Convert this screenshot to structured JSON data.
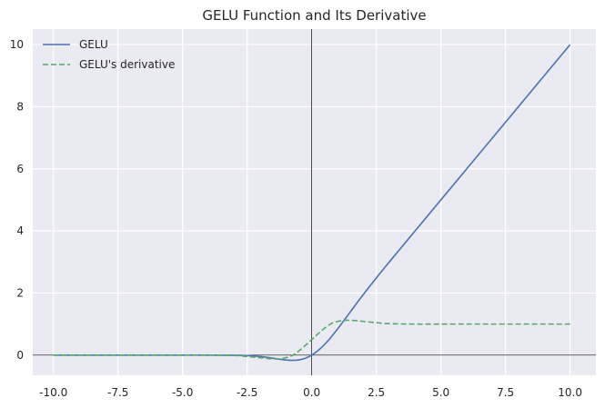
{
  "chart_data": {
    "type": "line",
    "title": "GELU Function and Its Derivative",
    "xlabel": "",
    "ylabel": "",
    "xlim": [
      -10.8,
      11.0
    ],
    "ylim": [
      -0.65,
      10.5
    ],
    "xticks": [
      -10.0,
      -7.5,
      -5.0,
      -2.5,
      0.0,
      2.5,
      5.0,
      7.5,
      10.0
    ],
    "xtick_labels": [
      "-10.0",
      "-7.5",
      "-5.0",
      "-2.5",
      "0.0",
      "2.5",
      "5.0",
      "7.5",
      "10.0"
    ],
    "yticks": [
      0,
      2,
      4,
      6,
      8,
      10
    ],
    "ytick_labels": [
      "0",
      "2",
      "4",
      "6",
      "8",
      "10"
    ],
    "grid": true,
    "legend_position": "upper-left",
    "reference_lines": [
      "x = 0",
      "y = 0"
    ],
    "x": [
      -10,
      -8,
      -6,
      -4,
      -3,
      -2.5,
      -2,
      -1.5,
      -1.25,
      -1,
      -0.75,
      -0.5,
      -0.25,
      0,
      0.25,
      0.5,
      0.75,
      1,
      1.25,
      1.5,
      1.75,
      2,
      2.5,
      3,
      4,
      6,
      8,
      10
    ],
    "series": [
      {
        "name": "GELU",
        "color": "#4c72b0",
        "style": "solid",
        "values": [
          0,
          0,
          0,
          0,
          -0.004,
          -0.015,
          -0.045,
          -0.1,
          -0.132,
          -0.159,
          -0.17,
          -0.154,
          -0.1,
          0,
          0.15,
          0.346,
          0.58,
          0.841,
          1.118,
          1.4,
          1.68,
          1.955,
          2.485,
          2.996,
          4.0,
          6.0,
          8.0,
          10.0
        ]
      },
      {
        "name": "GELU's derivative",
        "color": "#55a868",
        "style": "dashed",
        "values": [
          0,
          0,
          0,
          0,
          -0.012,
          -0.045,
          -0.085,
          -0.122,
          -0.12,
          -0.083,
          -0.012,
          0.133,
          0.31,
          0.5,
          0.69,
          0.867,
          1.012,
          1.083,
          1.12,
          1.122,
          1.105,
          1.085,
          1.045,
          1.012,
          1.0,
          1.0,
          1.0,
          1.0
        ]
      }
    ]
  }
}
